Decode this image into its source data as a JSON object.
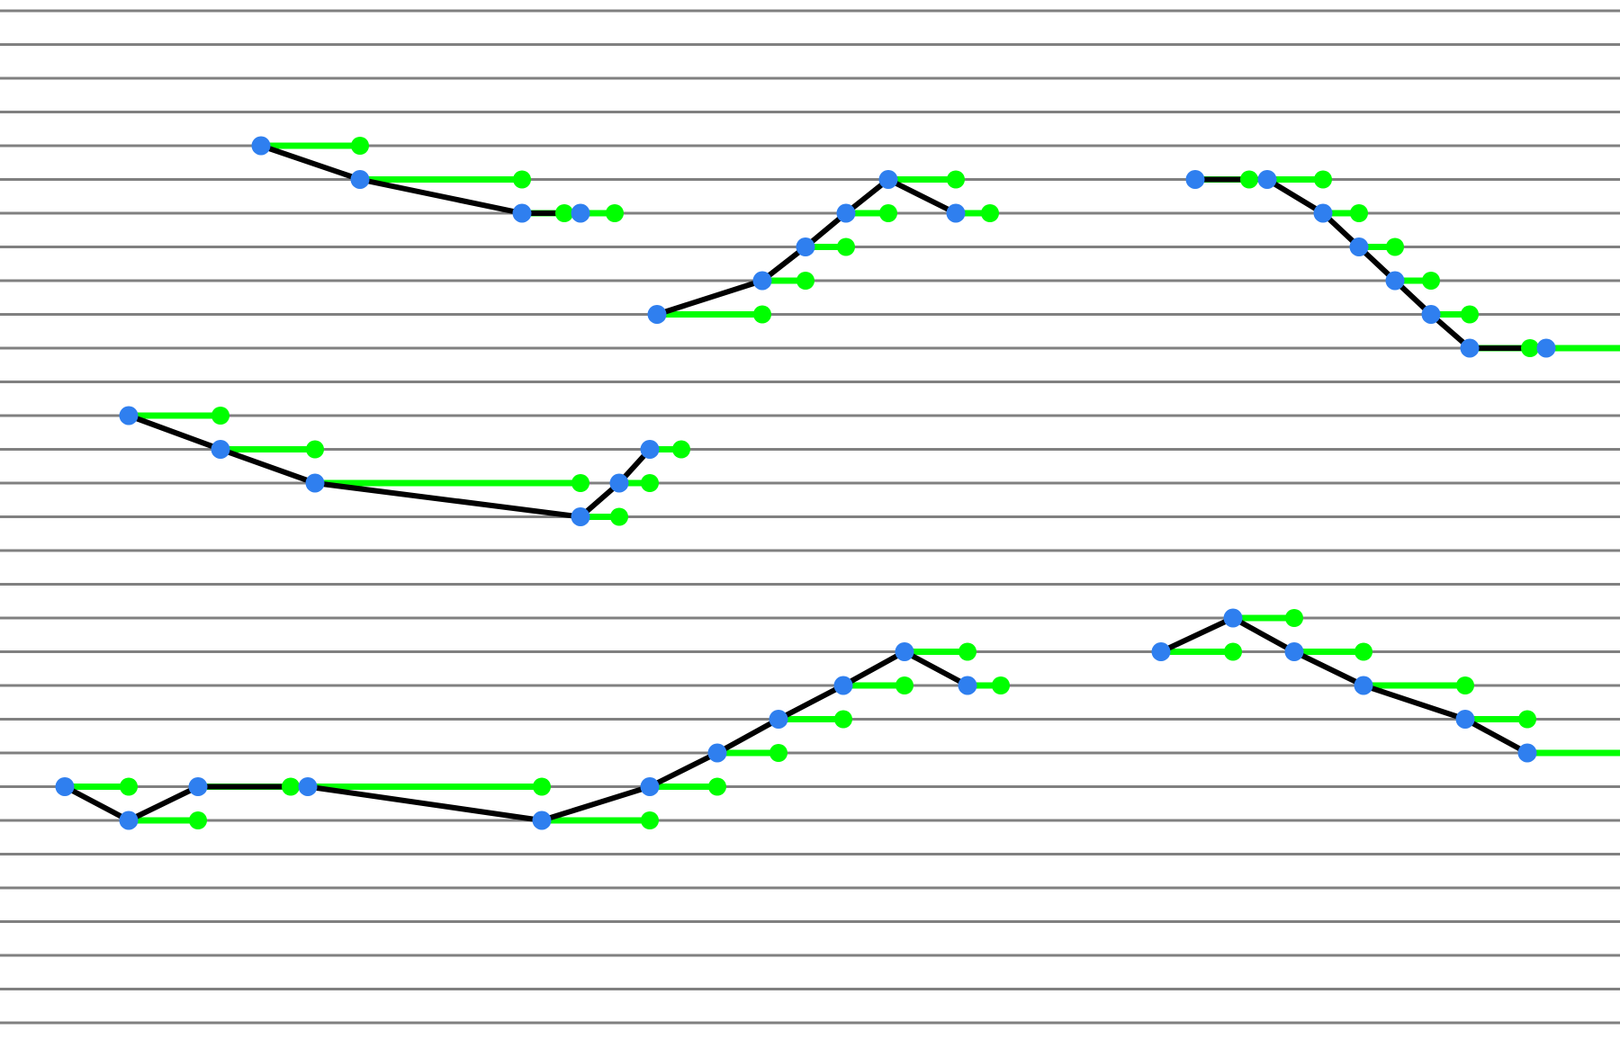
{
  "diagram": {
    "colors": {
      "background": "#ffffff",
      "staff_line": "#808080",
      "duration_line": "#00ff00",
      "melody_line": "#000000",
      "note_dot": "#2f7fef",
      "end_dot": "#00ff00"
    },
    "phrases": [
      {
        "name": "phrase-1",
        "notes": [
          {
            "time": 290,
            "lane": 4,
            "end": 400
          },
          {
            "time": 400,
            "lane": 5,
            "end": 580
          },
          {
            "time": 580,
            "lane": 6,
            "end": 627
          },
          {
            "time": 645,
            "lane": 6,
            "end": 683
          }
        ]
      },
      {
        "name": "phrase-2",
        "notes": [
          {
            "time": 730,
            "lane": 9,
            "end": 847
          },
          {
            "time": 847,
            "lane": 8,
            "end": 895
          },
          {
            "time": 895,
            "lane": 7,
            "end": 940
          },
          {
            "time": 940,
            "lane": 6,
            "end": 987
          },
          {
            "time": 987,
            "lane": 5,
            "end": 1062
          },
          {
            "time": 1062,
            "lane": 6,
            "end": 1100
          }
        ]
      },
      {
        "name": "phrase-3",
        "notes": [
          {
            "time": 1328,
            "lane": 5,
            "end": 1388
          },
          {
            "time": 1408,
            "lane": 5,
            "end": 1470
          },
          {
            "time": 1470,
            "lane": 6,
            "end": 1510
          },
          {
            "time": 1510,
            "lane": 7,
            "end": 1550
          },
          {
            "time": 1550,
            "lane": 8,
            "end": 1590
          },
          {
            "time": 1590,
            "lane": 9,
            "end": 1633
          },
          {
            "time": 1633,
            "lane": 10,
            "end": 1700
          },
          {
            "time": 1718,
            "lane": 10,
            "end": 1800
          }
        ]
      },
      {
        "name": "phrase-4",
        "notes": [
          {
            "time": 143,
            "lane": 12,
            "end": 245
          },
          {
            "time": 245,
            "lane": 13,
            "end": 350
          },
          {
            "time": 350,
            "lane": 14,
            "end": 645
          },
          {
            "time": 645,
            "lane": 15,
            "end": 688
          },
          {
            "time": 688,
            "lane": 14,
            "end": 722
          },
          {
            "time": 722,
            "lane": 13,
            "end": 757
          }
        ]
      },
      {
        "name": "phrase-5",
        "notes": [
          {
            "time": 72,
            "lane": 23,
            "end": 143
          },
          {
            "time": 143,
            "lane": 24,
            "end": 220
          },
          {
            "time": 220,
            "lane": 23,
            "end": 323
          },
          {
            "time": 342,
            "lane": 23,
            "end": 602
          },
          {
            "time": 602,
            "lane": 24,
            "end": 722
          },
          {
            "time": 722,
            "lane": 23,
            "end": 797
          },
          {
            "time": 797,
            "lane": 22,
            "end": 865
          },
          {
            "time": 865,
            "lane": 21,
            "end": 937
          },
          {
            "time": 937,
            "lane": 20,
            "end": 1005
          },
          {
            "time": 1005,
            "lane": 19,
            "end": 1075
          },
          {
            "time": 1075,
            "lane": 20,
            "end": 1112
          }
        ]
      },
      {
        "name": "phrase-6",
        "notes": [
          {
            "time": 1290,
            "lane": 19,
            "end": 1370
          },
          {
            "time": 1370,
            "lane": 18,
            "end": 1438
          },
          {
            "time": 1438,
            "lane": 19,
            "end": 1515
          },
          {
            "time": 1515,
            "lane": 20,
            "end": 1628
          },
          {
            "time": 1628,
            "lane": 21,
            "end": 1697
          },
          {
            "time": 1697,
            "lane": 22,
            "end": 1800
          }
        ]
      }
    ]
  }
}
